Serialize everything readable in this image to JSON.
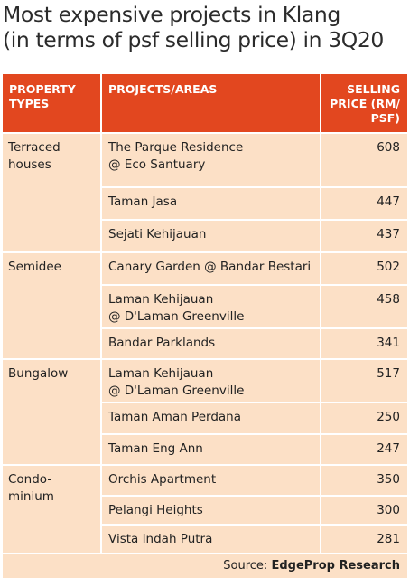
{
  "title": {
    "line1": "Most expensive projects in Klang",
    "line2": "(in terms of psf selling price) in 3Q20"
  },
  "header": {
    "col1_line1": "PROPERTY",
    "col1_line2": "TYPES",
    "col2": "PROJECTS/AREAS",
    "col3_line1": "SELLING",
    "col3_line2": "PRICE (RM/",
    "col3_line3": "PSF)"
  },
  "groups": [
    {
      "type_line1": "Terraced",
      "type_line2": "houses",
      "rows": [
        {
          "project_line1": "The Parque Residence",
          "project_line2": "@ Eco Santuary",
          "price": "608"
        },
        {
          "project_line1": "Taman Jasa",
          "project_line2": "",
          "price": "447"
        },
        {
          "project_line1": "Sejati Kehijauan",
          "project_line2": "",
          "price": "437"
        }
      ]
    },
    {
      "type_line1": "Semidee",
      "type_line2": "",
      "rows": [
        {
          "project_line1": "Canary Garden @ Bandar Bestari",
          "project_line2": "",
          "price": "502"
        },
        {
          "project_line1": "Laman Kehijauan",
          "project_line2": "@ D'Laman Greenville",
          "price": "458"
        },
        {
          "project_line1": "Bandar Parklands",
          "project_line2": "",
          "price": "341"
        }
      ]
    },
    {
      "type_line1": "Bungalow",
      "type_line2": "",
      "rows": [
        {
          "project_line1": "Laman Kehijauan",
          "project_line2": "@ D'Laman Greenville",
          "price": "517"
        },
        {
          "project_line1": "Taman Aman Perdana",
          "project_line2": "",
          "price": "250"
        },
        {
          "project_line1": "Taman Eng Ann",
          "project_line2": "",
          "price": "247"
        }
      ]
    },
    {
      "type_line1": "Condo-",
      "type_line2": "minium",
      "rows": [
        {
          "project_line1": "Orchis Apartment",
          "project_line2": "",
          "price": "350"
        },
        {
          "project_line1": "Pelangi Heights",
          "project_line2": "",
          "price": "300"
        },
        {
          "project_line1": "Vista Indah Putra",
          "project_line2": "",
          "price": "281"
        }
      ]
    }
  ],
  "source": {
    "prefix": "Source: ",
    "name": "EdgeProp Research"
  },
  "colors": {
    "header_bg": "#e2471f",
    "cell_bg": "#fce0c6"
  }
}
